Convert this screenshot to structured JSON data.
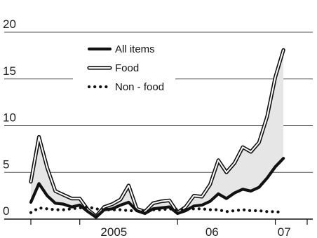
{
  "chart_data": {
    "type": "line",
    "title": "",
    "xlabel": "",
    "ylabel": "",
    "ylim": [
      0,
      20
    ],
    "y_ticks": [
      0,
      5,
      10,
      15,
      20
    ],
    "y_tick_labels": [
      "0",
      "5",
      "10",
      "15",
      "20"
    ],
    "x_tick_labels": [
      "2005",
      "06",
      "07"
    ],
    "grid": "horizontal",
    "legend_position": "top-center",
    "legend": [
      {
        "label": "All items",
        "style": "thick-solid"
      },
      {
        "label": "Food",
        "style": "outlined"
      },
      {
        "label": "Non - food",
        "style": "dotted"
      }
    ],
    "x": [
      2004.5,
      2004.583,
      2004.667,
      2004.75,
      2004.833,
      2004.917,
      2005.0,
      2005.083,
      2005.167,
      2005.25,
      2005.333,
      2005.417,
      2005.5,
      2005.583,
      2005.667,
      2005.75,
      2005.833,
      2005.917,
      2006.0,
      2006.083,
      2006.167,
      2006.25,
      2006.333,
      2006.417,
      2006.5,
      2006.583,
      2006.667,
      2006.75,
      2006.833,
      2006.917,
      2007.0,
      2007.083,
      2007.167,
      2007.25,
      2007.333
    ],
    "series": [
      {
        "name": "All items",
        "values": [
          1.8,
          3.8,
          2.5,
          1.7,
          1.6,
          1.3,
          1.5,
          0.8,
          0.2,
          1.0,
          1.1,
          1.5,
          1.8,
          0.9,
          0.6,
          1.1,
          1.2,
          1.3,
          0.6,
          0.9,
          1.4,
          1.5,
          1.9,
          2.7,
          2.2,
          2.8,
          3.2,
          3.0,
          3.4,
          4.4,
          5.6,
          6.5,
          null,
          null,
          null
        ]
      },
      {
        "name": "Food",
        "values": [
          4.0,
          8.8,
          5.5,
          3.0,
          2.6,
          2.2,
          2.2,
          1.0,
          0.3,
          1.3,
          1.6,
          2.1,
          3.6,
          1.1,
          0.8,
          1.7,
          1.9,
          2.0,
          0.7,
          1.3,
          2.5,
          2.4,
          3.7,
          6.3,
          5.0,
          6.0,
          7.7,
          7.2,
          8.2,
          11.0,
          15.2,
          18.1,
          null,
          null,
          null
        ]
      },
      {
        "name": "Non - food",
        "values": [
          0.7,
          1.2,
          1.1,
          1.0,
          1.0,
          1.1,
          1.2,
          1.3,
          1.1,
          1.0,
          1.0,
          1.0,
          0.9,
          0.9,
          0.8,
          1.0,
          1.0,
          1.1,
          1.0,
          1.0,
          1.1,
          1.1,
          1.0,
          1.0,
          0.8,
          0.9,
          1.0,
          0.9,
          0.9,
          0.8,
          0.8,
          0.7,
          null,
          null,
          null
        ]
      }
    ],
    "colors": {
      "ink": "#111111",
      "fill": "#e6e6e6",
      "grid": "#555555",
      "paper": "#ffffff"
    }
  }
}
